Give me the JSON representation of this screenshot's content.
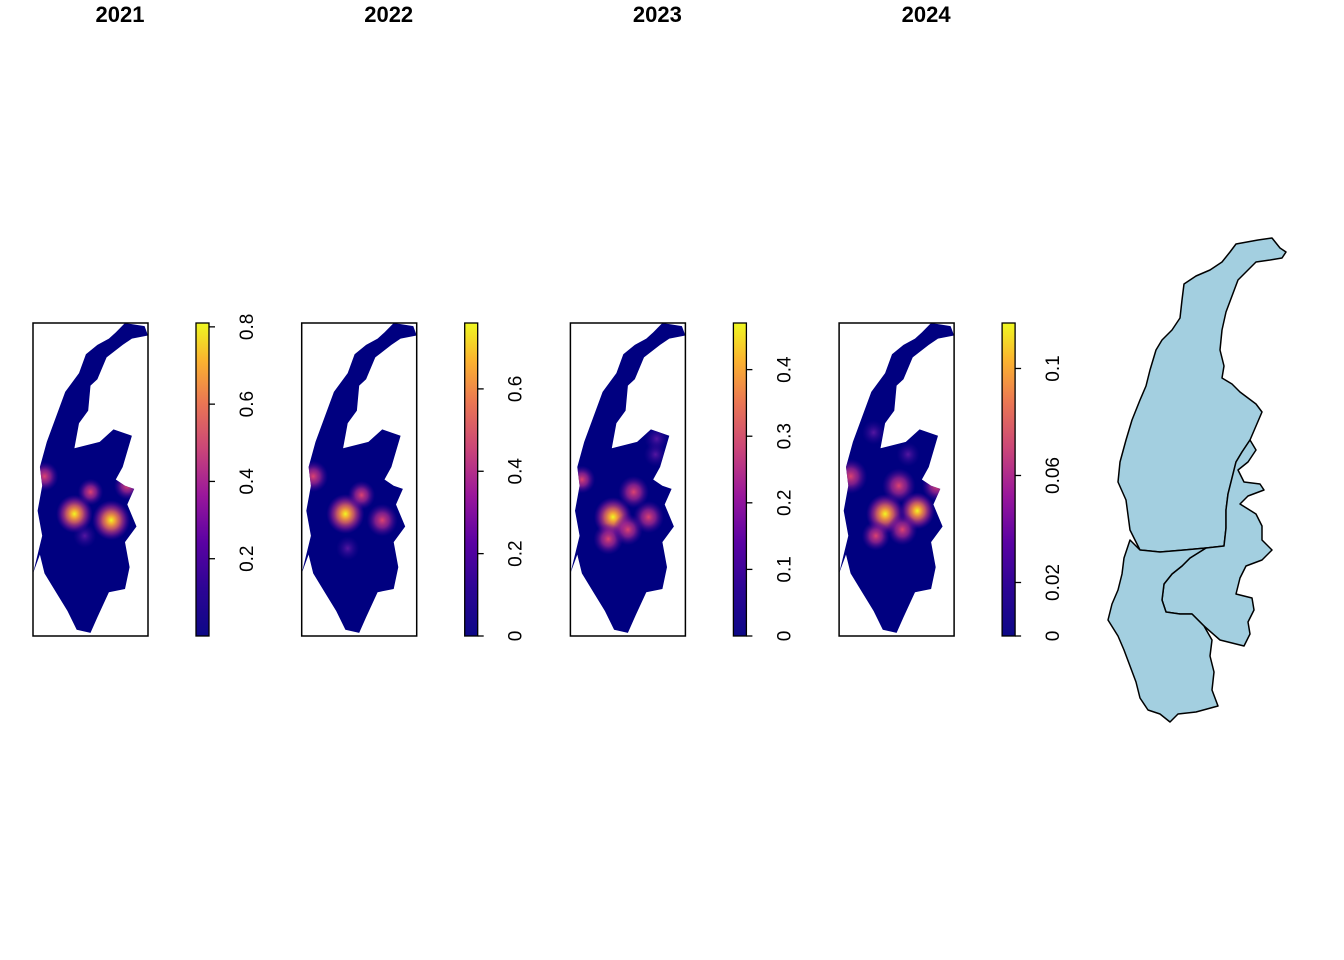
{
  "panels": [
    {
      "title": "2021",
      "legend_min": 0,
      "legend_max": 0.81,
      "ticks": [
        {
          "value": 0.2,
          "label": "0.2"
        },
        {
          "value": 0.4,
          "label": "0.4"
        },
        {
          "value": 0.6,
          "label": "0.6"
        },
        {
          "value": 0.8,
          "label": "0.8"
        }
      ],
      "hotspots": [
        {
          "u": 0.36,
          "v": 0.61,
          "intensity": 0.75
        },
        {
          "u": 0.68,
          "v": 0.63,
          "intensity": 0.81
        },
        {
          "u": 0.5,
          "v": 0.54,
          "intensity": 0.3
        },
        {
          "u": 0.1,
          "v": 0.49,
          "intensity": 0.4
        },
        {
          "u": 0.82,
          "v": 0.52,
          "intensity": 0.35
        },
        {
          "u": 0.45,
          "v": 0.68,
          "intensity": 0.2
        }
      ]
    },
    {
      "title": "2022",
      "legend_min": 0,
      "legend_max": 0.76,
      "ticks": [
        {
          "value": 0,
          "label": "0"
        },
        {
          "value": 0.2,
          "label": "0.2"
        },
        {
          "value": 0.4,
          "label": "0.4"
        },
        {
          "value": 0.6,
          "label": "0.6"
        }
      ],
      "hotspots": [
        {
          "u": 0.38,
          "v": 0.61,
          "intensity": 0.76
        },
        {
          "u": 0.7,
          "v": 0.63,
          "intensity": 0.5
        },
        {
          "u": 0.52,
          "v": 0.55,
          "intensity": 0.35
        },
        {
          "u": 0.1,
          "v": 0.49,
          "intensity": 0.45
        },
        {
          "u": 0.4,
          "v": 0.72,
          "intensity": 0.2
        }
      ]
    },
    {
      "title": "2023",
      "legend_min": 0,
      "legend_max": 0.47,
      "ticks": [
        {
          "value": 0,
          "label": "0"
        },
        {
          "value": 0.1,
          "label": "0.1"
        },
        {
          "value": 0.2,
          "label": "0.2"
        },
        {
          "value": 0.3,
          "label": "0.3"
        },
        {
          "value": 0.4,
          "label": "0.4"
        }
      ],
      "hotspots": [
        {
          "u": 0.37,
          "v": 0.62,
          "intensity": 0.47
        },
        {
          "u": 0.55,
          "v": 0.54,
          "intensity": 0.3
        },
        {
          "u": 0.68,
          "v": 0.62,
          "intensity": 0.3
        },
        {
          "u": 0.33,
          "v": 0.69,
          "intensity": 0.28
        },
        {
          "u": 0.5,
          "v": 0.66,
          "intensity": 0.28
        },
        {
          "u": 0.1,
          "v": 0.5,
          "intensity": 0.2
        },
        {
          "u": 0.75,
          "v": 0.37,
          "intensity": 0.15
        },
        {
          "u": 0.74,
          "v": 0.42,
          "intensity": 0.12
        }
      ]
    },
    {
      "title": "2024",
      "legend_min": 0,
      "legend_max": 0.117,
      "ticks": [
        {
          "value": 0,
          "label": "0"
        },
        {
          "value": 0.02,
          "label": "0.02"
        },
        {
          "value": 0.06,
          "label": "0.06"
        },
        {
          "value": 0.1,
          "label": "0.1"
        }
      ],
      "hotspots": [
        {
          "u": 0.4,
          "v": 0.61,
          "intensity": 0.117
        },
        {
          "u": 0.52,
          "v": 0.52,
          "intensity": 0.09
        },
        {
          "u": 0.68,
          "v": 0.6,
          "intensity": 0.1
        },
        {
          "u": 0.55,
          "v": 0.66,
          "intensity": 0.07
        },
        {
          "u": 0.32,
          "v": 0.68,
          "intensity": 0.06
        },
        {
          "u": 0.1,
          "v": 0.49,
          "intensity": 0.09
        },
        {
          "u": 0.85,
          "v": 0.52,
          "intensity": 0.07
        },
        {
          "u": 0.3,
          "v": 0.35,
          "intensity": 0.03
        },
        {
          "u": 0.6,
          "v": 0.42,
          "intensity": 0.03
        }
      ]
    }
  ],
  "boundary_map": {
    "fill_color": "#a3cfe0",
    "stroke_color": "#000000"
  },
  "colors": {
    "background": "#000080",
    "palette": [
      "#0d0887",
      "#5b02a3",
      "#9a179b",
      "#cb4678",
      "#eb7852",
      "#fbb32f",
      "#eff821"
    ]
  }
}
